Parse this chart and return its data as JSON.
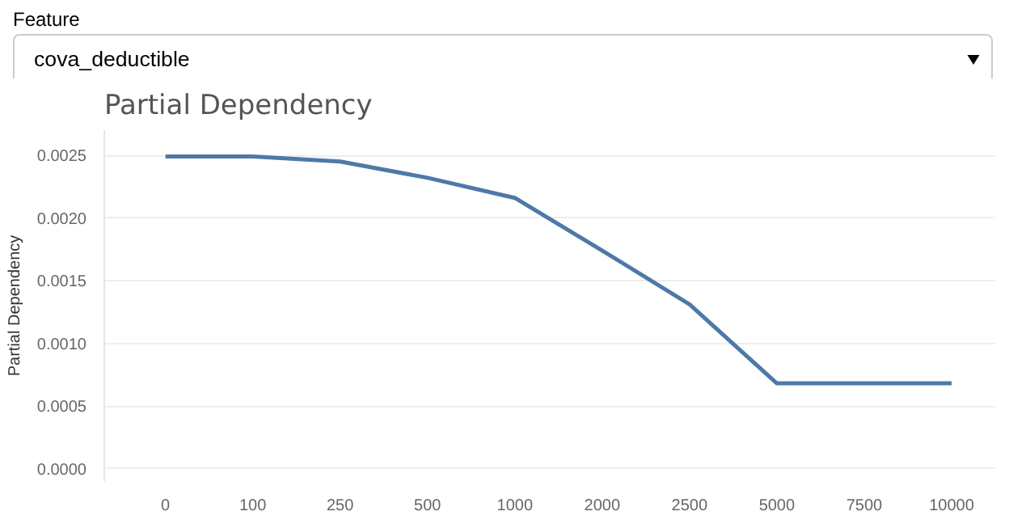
{
  "chart_data": {
    "type": "line",
    "title": "Partial Dependency",
    "ylabel": "Partial Dependency",
    "annotations": [
      "Feature",
      "cova_deductible"
    ],
    "categories": [
      "0",
      "100",
      "250",
      "500",
      "1000",
      "2000",
      "2500",
      "5000",
      "7500",
      "10000"
    ],
    "series": [
      {
        "color": "#4e79a7",
        "values": [
          0.00249,
          0.00249,
          0.00245,
          0.00232,
          0.00216,
          0.00174,
          0.00131,
          0.00068,
          0.00068,
          0.00068
        ]
      }
    ],
    "ylim": [
      -0.0001,
      0.0027
    ],
    "yticks": [
      {
        "value": 0,
        "label": "0.0000"
      },
      {
        "value": 0.0005,
        "label": "0.0005"
      },
      {
        "value": 0.001,
        "label": "0.0010"
      },
      {
        "value": 0.0015,
        "label": "0.0015"
      },
      {
        "value": 0.002,
        "label": "0.0020"
      },
      {
        "value": 0.0025,
        "label": "0.0025"
      }
    ],
    "grid": "y",
    "line_style": "solid"
  }
}
